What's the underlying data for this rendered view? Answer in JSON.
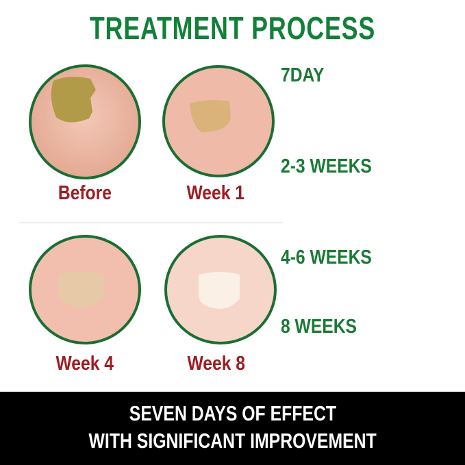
{
  "title": "TREATMENT PROCESS",
  "stages": [
    {
      "caption": "Before",
      "timeline": "7DAY"
    },
    {
      "caption": "Week 1",
      "timeline": "2-3 WEEKS"
    },
    {
      "caption": "Week 4",
      "timeline": "4-6 WEEKS"
    },
    {
      "caption": "Week 8",
      "timeline": "8 WEEKS"
    }
  ],
  "banner": {
    "line1": "SEVEN DAYS OF EFFECT",
    "line2": "WITH SIGNIFICANT IMPROVEMENT"
  },
  "colors": {
    "title_green": "#13803a",
    "caption_red": "#9e1c22",
    "ring_green": "#1a6e33",
    "banner_bg": "#000000"
  }
}
